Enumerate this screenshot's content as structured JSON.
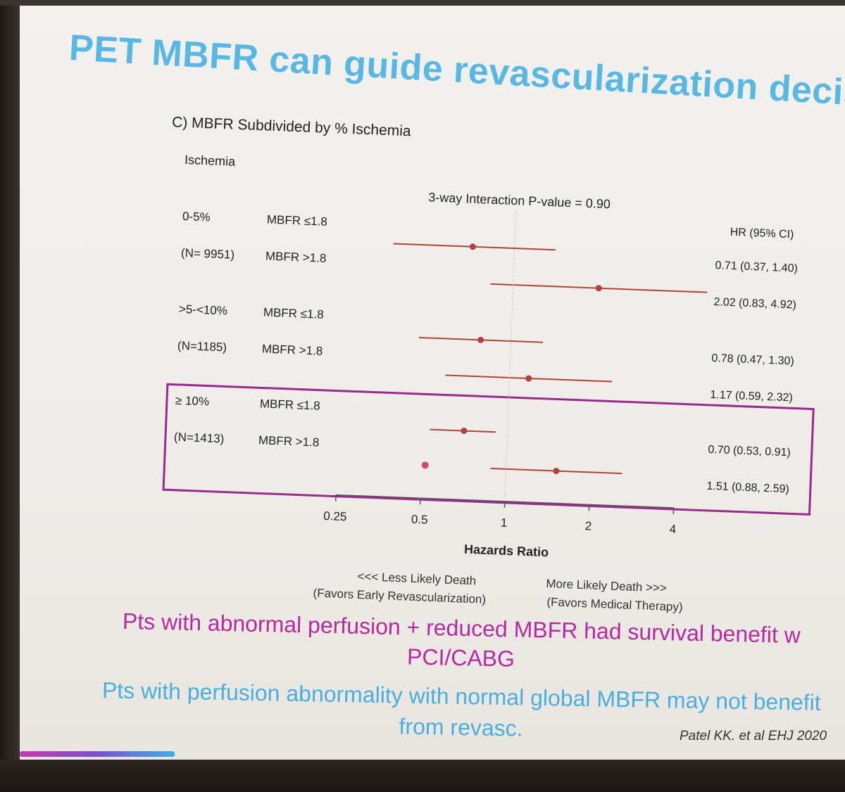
{
  "title": "PET MBFR can guide revascularization decision",
  "chart_data": {
    "type": "forest",
    "panel_title": "C) MBFR Subdivided by % Ischemia",
    "group_header": "Ischemia",
    "interaction": "3-way Interaction P-value = 0.90",
    "hr_header": "HR (95% CI)",
    "xlabel": "Hazards Ratio",
    "xscale": "log",
    "xlim": [
      0.25,
      4
    ],
    "ticks": [
      {
        "value": 0.25,
        "label": "0.25"
      },
      {
        "value": 0.5,
        "label": "0.5"
      },
      {
        "value": 1,
        "label": "1"
      },
      {
        "value": 2,
        "label": "2"
      },
      {
        "value": 4,
        "label": "4"
      }
    ],
    "reference": 1,
    "groups": [
      {
        "label": "0-5%",
        "n": "(N= 9951)",
        "highlight": false,
        "rows": [
          {
            "subgroup": "MBFR ≤1.8",
            "hr": 0.71,
            "lo": 0.37,
            "hi": 1.4,
            "text": "0.71 (0.37, 1.40)"
          },
          {
            "subgroup": "MBFR >1.8",
            "hr": 2.02,
            "lo": 0.83,
            "hi": 4.92,
            "text": "2.02 (0.83, 4.92)"
          }
        ]
      },
      {
        "label": ">5-<10%",
        "n": "(N=1185)",
        "highlight": false,
        "rows": [
          {
            "subgroup": "MBFR ≤1.8",
            "hr": 0.78,
            "lo": 0.47,
            "hi": 1.3,
            "text": "0.78 (0.47, 1.30)"
          },
          {
            "subgroup": "MBFR >1.8",
            "hr": 1.17,
            "lo": 0.59,
            "hi": 2.32,
            "text": "1.17 (0.59, 2.32)"
          }
        ]
      },
      {
        "label": "≥ 10%",
        "n": "(N=1413)",
        "highlight": true,
        "rows": [
          {
            "subgroup": "MBFR ≤1.8",
            "hr": 0.7,
            "lo": 0.53,
            "hi": 0.91,
            "text": "0.70 (0.53, 0.91)"
          },
          {
            "subgroup": "MBFR >1.8",
            "hr": 1.51,
            "lo": 0.88,
            "hi": 2.59,
            "text": "1.51 (0.88, 2.59)"
          }
        ]
      }
    ],
    "left_note": [
      "<<< Less Likely Death",
      "(Favors Early Revascularization)"
    ],
    "right_note": [
      "More Likely Death >>>",
      "(Favors Medical Therapy)"
    ]
  },
  "caption_line1": "Pts with abnormal perfusion + reduced MBFR had survival benefit w",
  "caption_line2": "PCI/CABG",
  "caption2_line1": "Pts with perfusion abnormality with normal global MBFR may not benefit",
  "caption2_line2": "from revasc.",
  "citation": "Patel KK. et al EHJ 2020",
  "colors": {
    "title": "#59b7e3",
    "ci": "#b5403a",
    "highlight_box": "#9b2a8e",
    "caption_magenta": "#b52aa0",
    "caption_blue": "#4aaedd"
  }
}
